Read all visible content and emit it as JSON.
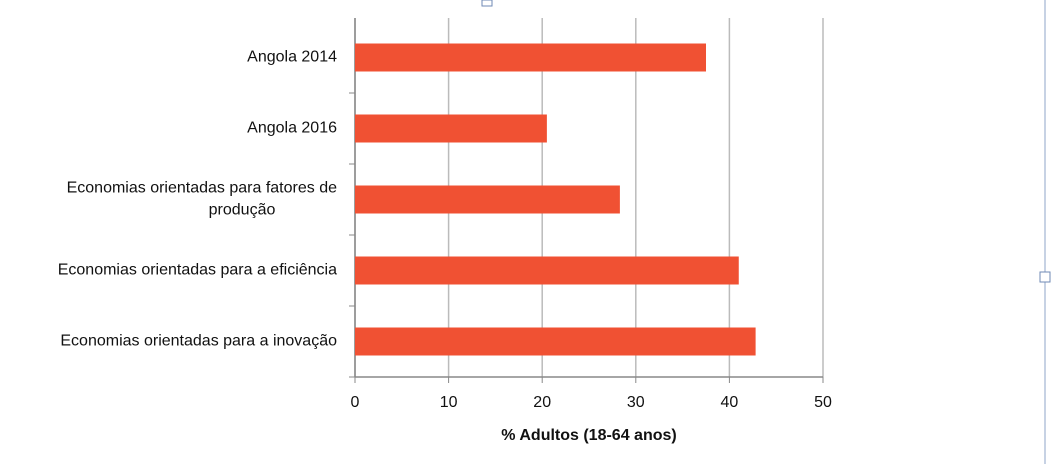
{
  "chart_data": {
    "type": "bar",
    "orientation": "horizontal",
    "x_label": "% Adultos (18-64 anos)",
    "categories": [
      "Angola 2014",
      "Angola 2016",
      "Economias orientadas para fatores de produção",
      "Economias orientadas para a eficiência",
      "Economias orientadas para a inovação"
    ],
    "values": [
      37.5,
      20.5,
      28.3,
      41,
      42.8
    ],
    "color": "#f05133",
    "xlim": [
      0,
      50
    ],
    "xticks": [
      0,
      10,
      20,
      30,
      40,
      50
    ],
    "grid": true
  }
}
